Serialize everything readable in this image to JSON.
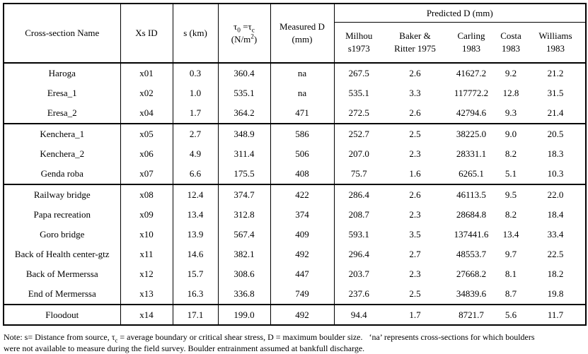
{
  "table": {
    "header": {
      "cross_section_name": "Cross-section Name",
      "xs_id": "Xs ID",
      "s_km": "s (km)",
      "shear": {
        "sym1": "τ",
        "sub1": "0",
        "eq": " =",
        "sym2": "τ",
        "sub2": "c",
        "unit_open": "(N/m",
        "unit_sup": "2",
        "unit_close": ")"
      },
      "measured_d": "Measured D\n(mm)",
      "predicted_d": "Predicted D (mm)",
      "predicted_sub": [
        "Milhou\ns1973",
        "Baker &\nRitter 1975",
        "Carling\n1983",
        "Costa\n1983",
        "Williams\n1983"
      ]
    },
    "groups": [
      {
        "rows": [
          [
            "Haroga",
            "x01",
            "0.3",
            "360.4",
            "na",
            "267.5",
            "2.6",
            "41627.2",
            "9.2",
            "21.2"
          ],
          [
            "Eresa_1",
            "x02",
            "1.0",
            "535.1",
            "na",
            "535.1",
            "3.3",
            "117772.2",
            "12.8",
            "31.5"
          ],
          [
            "Eresa_2",
            "x04",
            "1.7",
            "364.2",
            "471",
            "272.5",
            "2.6",
            "42794.6",
            "9.3",
            "21.4"
          ]
        ]
      },
      {
        "rows": [
          [
            "Kenchera_1",
            "x05",
            "2.7",
            "348.9",
            "586",
            "252.7",
            "2.5",
            "38225.0",
            "9.0",
            "20.5"
          ],
          [
            "Kenchera_2",
            "x06",
            "4.9",
            "311.4",
            "506",
            "207.0",
            "2.3",
            "28331.1",
            "8.2",
            "18.3"
          ],
          [
            "Genda roba",
            "x07",
            "6.6",
            "175.5",
            "408",
            "75.7",
            "1.6",
            "6265.1",
            "5.1",
            "10.3"
          ]
        ]
      },
      {
        "rows": [
          [
            "Railway bridge",
            "x08",
            "12.4",
            "374.7",
            "422",
            "286.4",
            "2.6",
            "46113.5",
            "9.5",
            "22.0"
          ],
          [
            "Papa recreation",
            "x09",
            "13.4",
            "312.8",
            "374",
            "208.7",
            "2.3",
            "28684.8",
            "8.2",
            "18.4"
          ],
          [
            "Goro bridge",
            "x10",
            "13.9",
            "567.4",
            "409",
            "593.1",
            "3.5",
            "137441.6",
            "13.4",
            "33.4"
          ],
          [
            "Back of Health center-gtz",
            "x11",
            "14.6",
            "382.1",
            "492",
            "296.4",
            "2.7",
            "48553.7",
            "9.7",
            "22.5"
          ],
          [
            "Back of Mermerssa",
            "x12",
            "15.7",
            "308.6",
            "447",
            "203.7",
            "2.3",
            "27668.2",
            "8.1",
            "18.2"
          ],
          [
            "End of Mermerssa",
            "x13",
            "16.3",
            "336.8",
            "749",
            "237.6",
            "2.5",
            "34839.6",
            "8.7",
            "19.8"
          ]
        ]
      },
      {
        "rows": [
          [
            "Floodout",
            "x14",
            "17.1",
            "199.0",
            "492",
            "94.4",
            "1.7",
            "8721.7",
            "5.6",
            "11.7"
          ]
        ]
      }
    ]
  },
  "note": {
    "part1": "Note: s= Distance from source, τ",
    "sub": "c",
    "part2": " = average boundary or critical shear stress, D = maximum boulder size.  ‘na’ represents cross-sections for which boulders\nwere not available to measure during the field survey. Boulder entrainment assumed at bankfull discharge."
  }
}
